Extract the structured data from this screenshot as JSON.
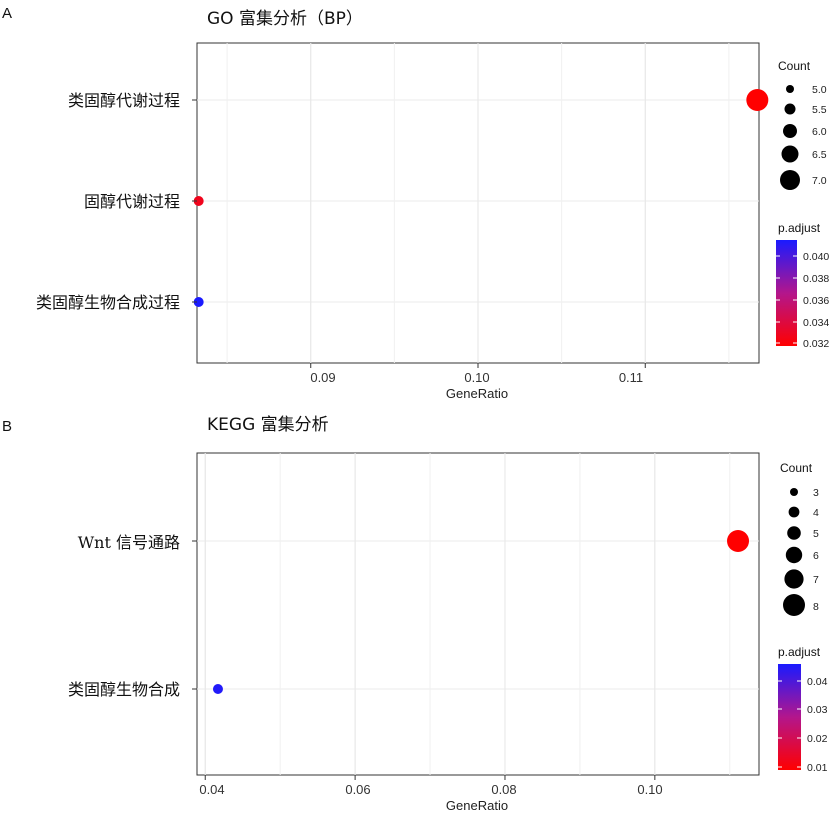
{
  "chart_data": [
    {
      "panel": "A",
      "type": "scatter",
      "title": "GO 富集分析（BP）",
      "xlabel": "GeneRatio",
      "ylabel": "",
      "xlim": [
        0.0832,
        0.1168
      ],
      "xticks": [
        0.09,
        0.1,
        0.11
      ],
      "xtick_labels": [
        "0.09",
        "0.10",
        "0.11"
      ],
      "categories": [
        "类固醇代谢过程",
        "固醇代谢过程",
        "类固醇生物合成过程"
      ],
      "points": [
        {
          "category": "类固醇代谢过程",
          "x": 0.1167,
          "count": 7.0,
          "p_adjust": 0.031
        },
        {
          "category": "固醇代谢过程",
          "x": 0.0833,
          "count": 5.0,
          "p_adjust": 0.032
        },
        {
          "category": "类固醇生物合成过程",
          "x": 0.0833,
          "count": 5.0,
          "p_adjust": 0.041
        }
      ],
      "size_legend": {
        "title": "Count",
        "values": [
          5.0,
          5.5,
          6.0,
          6.5,
          7.0
        ],
        "labels": [
          "5.0",
          "5.5",
          "6.0",
          "6.5",
          "7.0"
        ]
      },
      "color_legend": {
        "title": "p.adjust",
        "range": [
          0.031,
          0.041
        ],
        "ticks": [
          0.04,
          0.038,
          0.036,
          0.034,
          0.032
        ],
        "labels": [
          "0.040",
          "0.038",
          "0.036",
          "0.034",
          "0.032"
        ],
        "low_color": "#ff0000",
        "high_color": "#1a1aff"
      },
      "grid": true,
      "legend_position": "right"
    },
    {
      "panel": "B",
      "type": "scatter",
      "title": "KEGG 富集分析",
      "xlabel": "GeneRatio",
      "ylabel": "",
      "xlim": [
        0.0389,
        0.1139
      ],
      "xticks": [
        0.04,
        0.06,
        0.08,
        0.1
      ],
      "xtick_labels": [
        "0.04",
        "0.06",
        "0.08",
        "0.10"
      ],
      "categories": [
        "Wnt 信号通路",
        "类固醇生物合成"
      ],
      "points": [
        {
          "category": "Wnt 信号通路",
          "x": 0.1111,
          "count": 8,
          "p_adjust": 0.009
        },
        {
          "category": "类固醇生物合成",
          "x": 0.0417,
          "count": 3,
          "p_adjust": 0.046
        }
      ],
      "size_legend": {
        "title": "Count",
        "values": [
          3,
          4,
          5,
          6,
          7,
          8
        ],
        "labels": [
          "3",
          "4",
          "5",
          "6",
          "7",
          "8"
        ]
      },
      "color_legend": {
        "title": "p.adjust",
        "range": [
          0.009,
          0.047
        ],
        "ticks": [
          0.04,
          0.03,
          0.02,
          0.01
        ],
        "labels": [
          "0.04",
          "0.03",
          "0.02",
          "0.01"
        ],
        "low_color": "#ff0000",
        "high_color": "#1a1aff"
      },
      "grid": true,
      "legend_position": "right"
    }
  ]
}
